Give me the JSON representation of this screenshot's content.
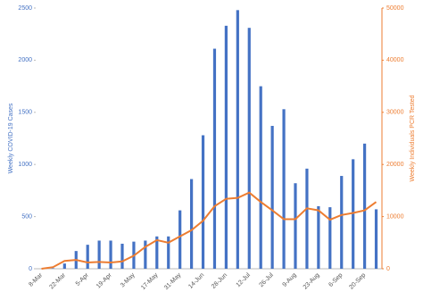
{
  "chart_data": {
    "type": "bar-line",
    "categories": [
      "8-Mar",
      null,
      "22-Mar",
      null,
      "5-Apr",
      null,
      "19-Apr",
      null,
      "3-May",
      null,
      "17-May",
      null,
      "31-May",
      null,
      "14-Jun",
      null,
      "28-Jun",
      null,
      "12-Jul",
      null,
      "26-Jul",
      null,
      "9-Aug",
      null,
      "23-Aug",
      null,
      "6-Sep",
      null,
      "20-Sep",
      null
    ],
    "y_label": "Weekly COVID-19 Cases",
    "y2_label": "Weekly Individuals PCR Tested",
    "ylim": [
      0,
      2500
    ],
    "yticks": [
      0,
      500,
      1000,
      1500,
      2000,
      2500
    ],
    "y2lim": [
      0,
      50000
    ],
    "y2ticks": [
      0,
      10000,
      20000,
      30000,
      40000,
      50000
    ],
    "series": [
      {
        "type": "bar",
        "color": "#4472c4",
        "values": [
          0,
          5,
          50,
          170,
          230,
          270,
          270,
          240,
          260,
          270,
          310,
          310,
          560,
          860,
          1280,
          2110,
          2330,
          2480,
          2310,
          1750,
          1370,
          1530,
          820,
          960,
          600,
          590,
          890,
          1050,
          1200,
          570
        ]
      },
      {
        "type": "line",
        "axis": "y2",
        "color": "#ed7d31",
        "values": [
          0,
          300,
          1500,
          1700,
          1200,
          1300,
          1200,
          1400,
          2500,
          4200,
          5500,
          5000,
          6200,
          7400,
          9200,
          12000,
          13400,
          13600,
          14600,
          12800,
          11200,
          9500,
          9500,
          11600,
          11200,
          9400,
          10300,
          10700,
          11200,
          12800
        ]
      }
    ]
  }
}
